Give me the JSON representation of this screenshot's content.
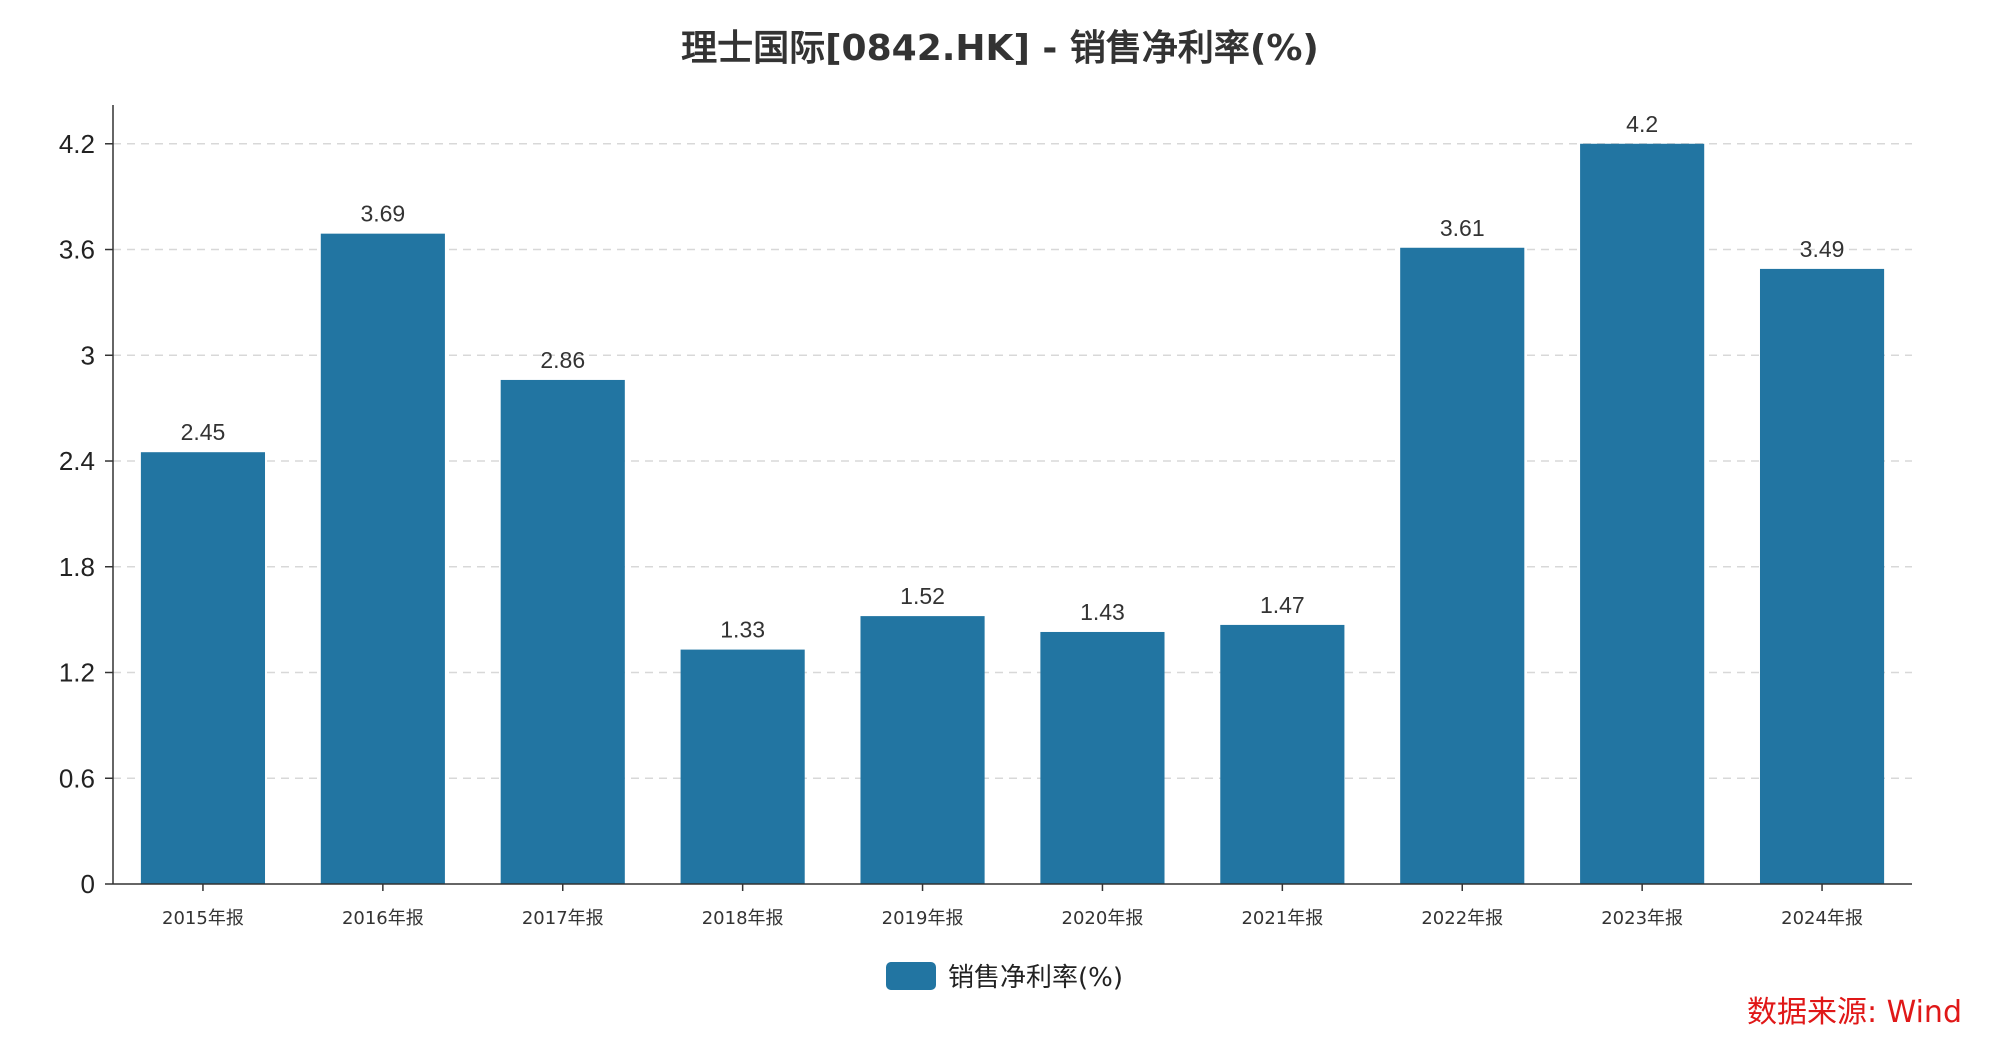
{
  "chart_data": {
    "type": "bar",
    "title": "理士国际[0842.HK] - 销售净利率(%)",
    "categories": [
      "2015年报",
      "2016年报",
      "2017年报",
      "2018年报",
      "2019年报",
      "2020年报",
      "2021年报",
      "2022年报",
      "2023年报",
      "2024年报"
    ],
    "series": [
      {
        "name": "销售净利率(%)",
        "values": [
          2.45,
          3.69,
          2.86,
          1.33,
          1.52,
          1.43,
          1.47,
          3.61,
          4.2,
          3.49
        ],
        "data_labels": [
          "2.45",
          "3.69",
          "2.86",
          "1.33",
          "1.52",
          "1.43",
          "1.47",
          "3.61",
          "4.2",
          "3.49"
        ],
        "color": "#2275a2"
      }
    ],
    "yticks": [
      0,
      0.6,
      1.2,
      1.8,
      2.4,
      3,
      3.6,
      4.2
    ],
    "ytick_labels": [
      "0",
      "0.6",
      "1.2",
      "1.8",
      "2.4",
      "3",
      "3.6",
      "4.2"
    ],
    "ylim": [
      0,
      4.42
    ],
    "grid": true,
    "legend_position": "bottom-center",
    "axis_color": "#333333",
    "grid_color": "#d8d8d8"
  },
  "source_note": "数据来源: Wind"
}
